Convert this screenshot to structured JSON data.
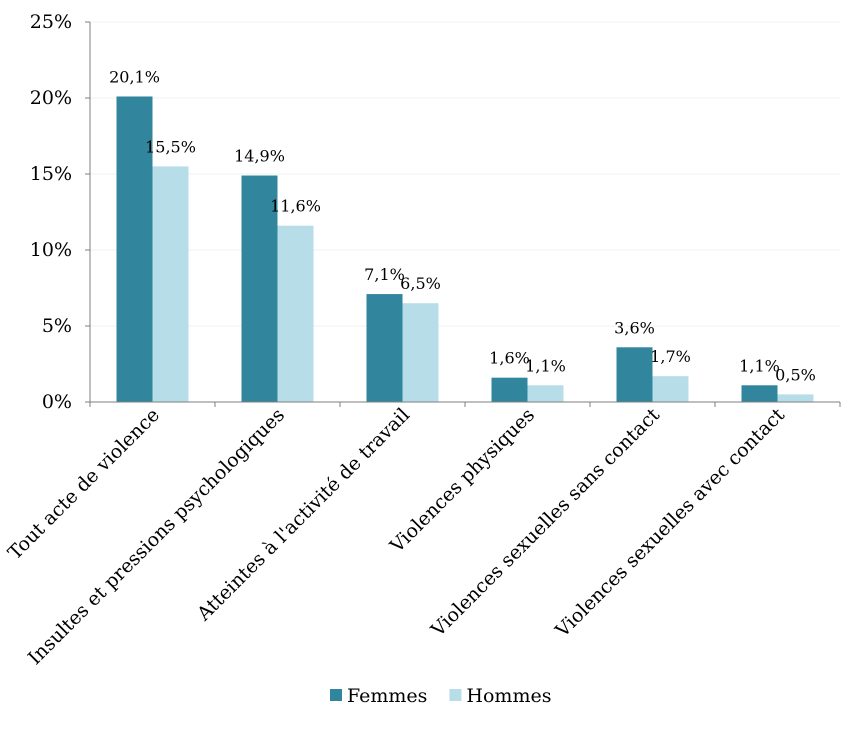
{
  "chart_data": {
    "type": "bar",
    "categories": [
      "Tout acte de violence",
      "Insultes et pressions psychologiques",
      "Atteintes à l'activité de travail",
      "Violences physiques",
      "Violences sexuelles sans contact",
      "Violences sexuelles avec contact"
    ],
    "series": [
      {
        "name": "Femmes",
        "color": "#31859c",
        "values": [
          20.1,
          14.9,
          7.1,
          1.6,
          3.6,
          1.1
        ],
        "labels": [
          "20,1%",
          "14,9%",
          "7,1%",
          "1,6%",
          "3,6%",
          "1,1%"
        ]
      },
      {
        "name": "Hommes",
        "color": "#b7dde8",
        "values": [
          15.5,
          11.6,
          6.5,
          1.1,
          1.7,
          0.5
        ],
        "labels": [
          "15,5%",
          "11,6%",
          "6,5%",
          "1,1%",
          "1,7%",
          "0,5%"
        ]
      }
    ],
    "ylim": [
      0,
      25
    ],
    "yticks": [
      0,
      5,
      10,
      15,
      20,
      25
    ],
    "ytick_labels": [
      "0%",
      "5%",
      "10%",
      "15%",
      "20%",
      "25%"
    ],
    "grid": true,
    "legend": "bottom",
    "title": "",
    "xlabel": "",
    "ylabel": ""
  }
}
